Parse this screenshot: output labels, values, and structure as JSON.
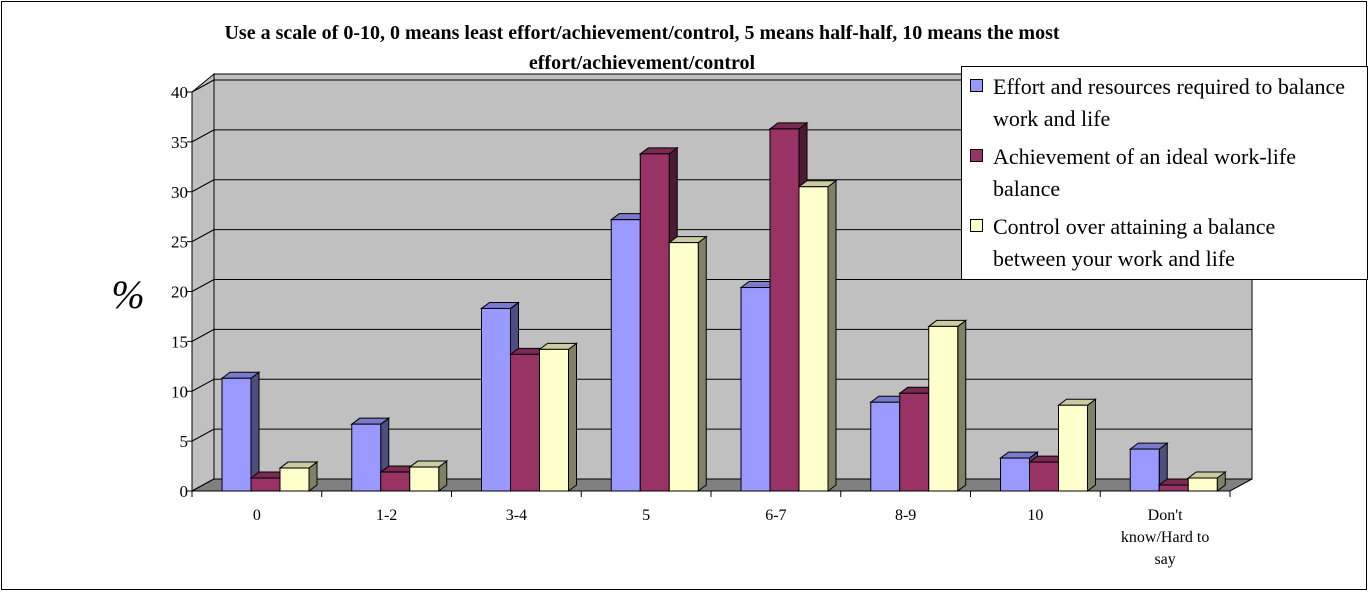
{
  "chart_data": {
    "type": "bar",
    "title": "Use a scale of 0-10, 0 means least effort/achievement/control, 5 means half-half, 10 means the most effort/achievement/control",
    "ylabel": "%",
    "xlabel": "",
    "categories": [
      "0",
      "1-2",
      "3-4",
      "5",
      "6-7",
      "8-9",
      "10",
      "Don't know/Hard to say"
    ],
    "ylim": [
      0,
      40
    ],
    "yticks": [
      0,
      5,
      10,
      15,
      20,
      25,
      30,
      35,
      40
    ],
    "grid": true,
    "legend_position": "top-right",
    "series": [
      {
        "name": "Effort and resources required to balance work and life",
        "color": "#9999ff",
        "values": [
          11.3,
          6.7,
          18.3,
          27.2,
          20.4,
          8.9,
          3.3,
          4.2
        ]
      },
      {
        "name": "Achievement of an ideal work-life balance",
        "color": "#993366",
        "values": [
          1.3,
          1.9,
          13.7,
          33.8,
          36.3,
          9.8,
          2.9,
          0.6
        ]
      },
      {
        "name": "Control over attaining a balance between your work and life",
        "color": "#ffffcc",
        "values": [
          2.3,
          2.4,
          14.2,
          24.9,
          30.5,
          16.5,
          8.6,
          1.3
        ]
      }
    ]
  }
}
